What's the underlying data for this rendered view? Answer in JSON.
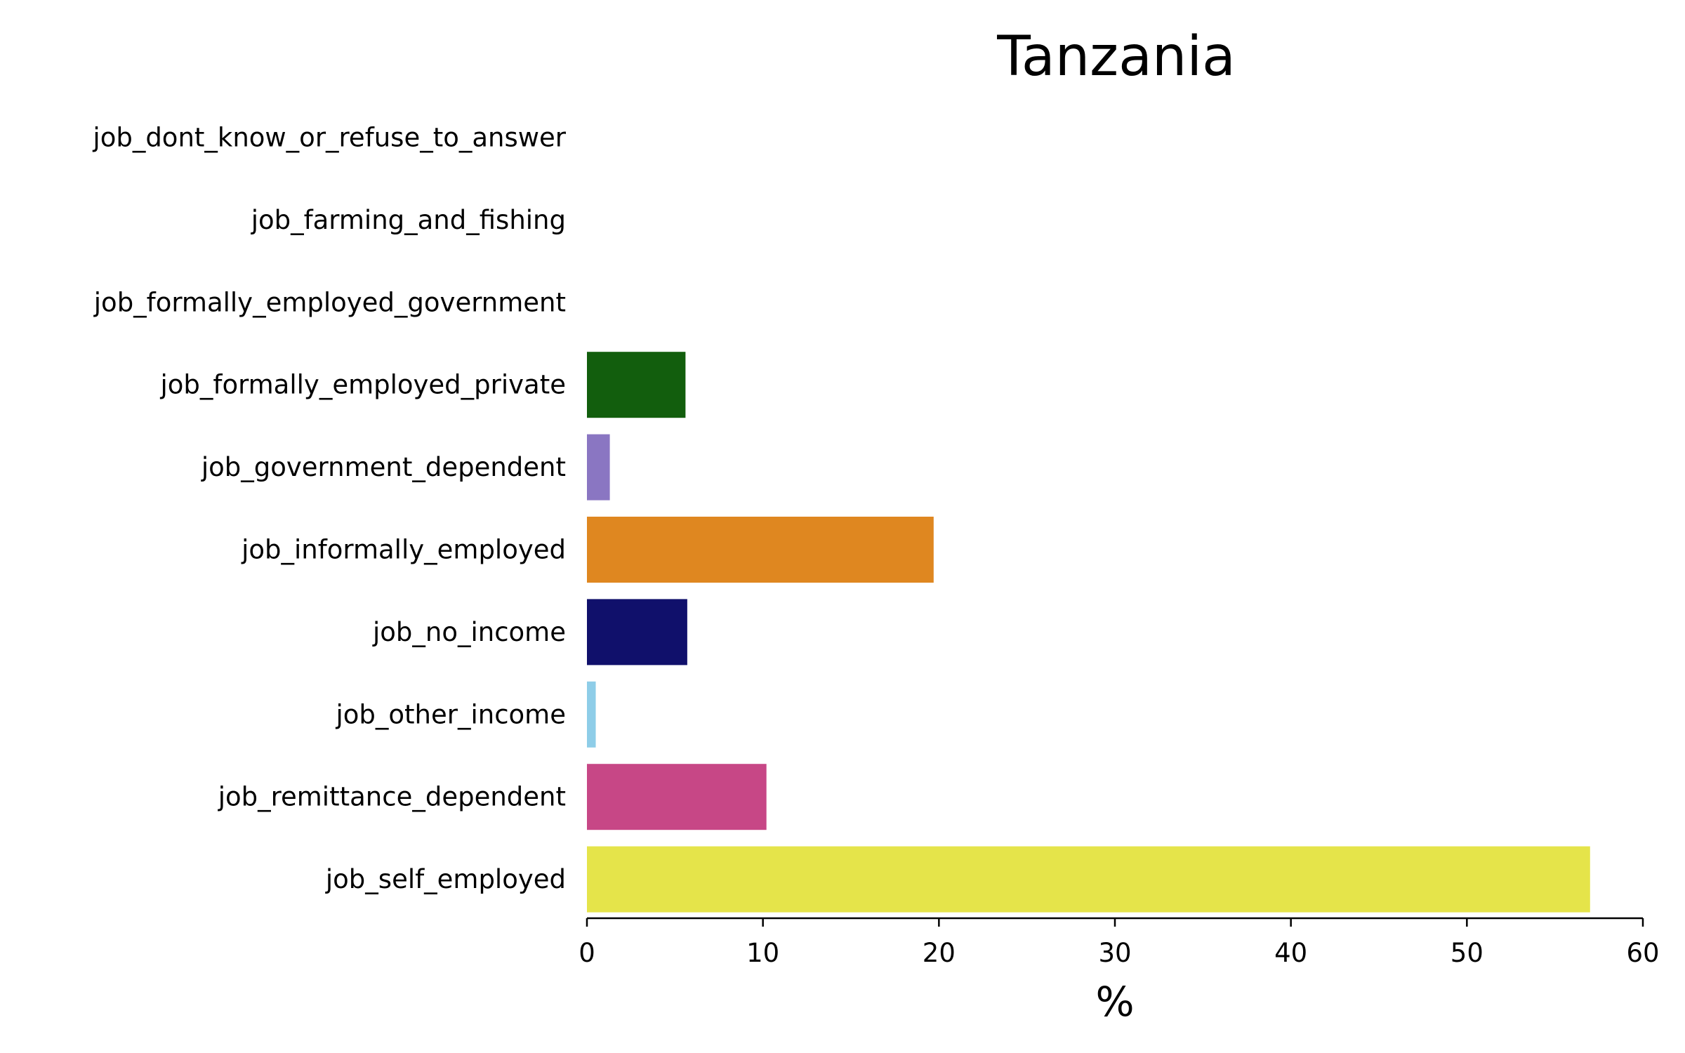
{
  "chart_data": {
    "type": "bar",
    "orientation": "horizontal",
    "title": "Tanzania",
    "xlabel": "%",
    "ylabel": "",
    "xlim": [
      0,
      60
    ],
    "xticks": [
      0,
      10,
      20,
      30,
      40,
      50,
      60
    ],
    "grid": false,
    "legend": "none",
    "categories": [
      "job_dont_know_or_refuse_to_answer",
      "job_farming_and_fishing",
      "job_formally_employed_government",
      "job_formally_employed_private",
      "job_government_dependent",
      "job_informally_employed",
      "job_no_income",
      "job_other_income",
      "job_remittance_dependent",
      "job_self_employed"
    ],
    "values": [
      0,
      0,
      0,
      5.6,
      1.3,
      19.7,
      5.7,
      0.5,
      10.2,
      57.0
    ],
    "colors": [
      "#5a7ec4",
      "#8c564b",
      "#bcbd22",
      "#125e0d",
      "#8a76c2",
      "#df8720",
      "#10106b",
      "#8ecde8",
      "#c74786",
      "#e5e44a"
    ]
  }
}
